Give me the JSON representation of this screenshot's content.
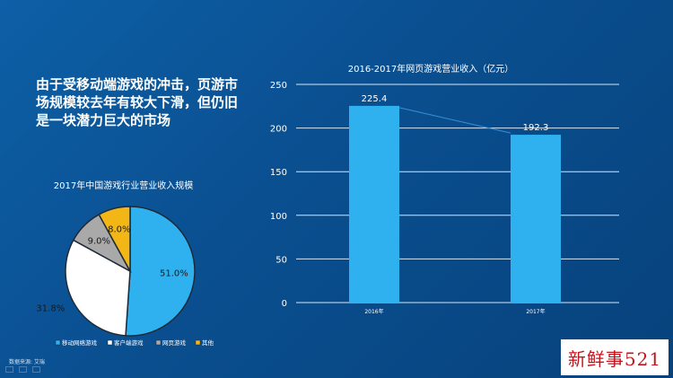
{
  "headline": "由于受移动端游戏的冲击，页游市场规模较去年有较大下滑，但仍旧是一块潜力巨大的市场",
  "source_note": "数据来源: 艾瑞",
  "watermark_text": "新鲜事521",
  "colors": {
    "background": "#0a4f90",
    "bar": "#2fb1f0",
    "pie_mobile": "#2fb1f0",
    "pie_client": "#ffffff",
    "pie_web": "#a9a9a9",
    "pie_other": "#f2b617",
    "text": "#ffffff"
  },
  "chart_data": [
    {
      "type": "pie",
      "title": "2017年中国游戏行业营业收入规模",
      "categories": [
        "移动网络游戏",
        "客户端游戏",
        "网页游戏",
        "其他"
      ],
      "values": [
        51.0,
        31.8,
        9.0,
        8.0
      ],
      "value_labels": [
        "51.0%",
        "31.8%",
        "9.0%",
        "8.0%"
      ],
      "legend_position": "bottom"
    },
    {
      "type": "bar",
      "title": "2016-2017年网页游戏营业收入（亿元）",
      "categories": [
        "2016年",
        "2017年"
      ],
      "values": [
        225.4,
        192.3
      ],
      "value_labels": [
        "225.4",
        "192.3"
      ],
      "ylim": [
        0,
        250
      ],
      "yticks": [
        "0",
        "50",
        "100",
        "150",
        "200",
        "250"
      ],
      "grid": true
    }
  ]
}
